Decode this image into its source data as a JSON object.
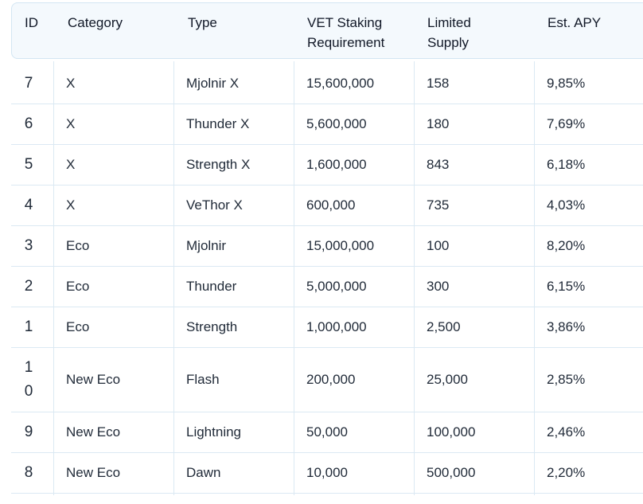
{
  "table": {
    "headers": {
      "id": "ID",
      "category": "Category",
      "type": "Type",
      "vet_line1": "VET Staking",
      "vet_line2": "Requirement",
      "supply_line1": "Limited",
      "supply_line2": "Supply",
      "apy": "Est. APY"
    },
    "rows": [
      {
        "id": "7",
        "category": "X",
        "type": "Mjolnir X",
        "vet": "15,600,000",
        "supply": "158",
        "apy": "9,85%"
      },
      {
        "id": "6",
        "category": "X",
        "type": "Thunder X",
        "vet": "5,600,000",
        "supply": "180",
        "apy": "7,69%"
      },
      {
        "id": "5",
        "category": "X",
        "type": "Strength X",
        "vet": "1,600,000",
        "supply": "843",
        "apy": "6,18%"
      },
      {
        "id": "4",
        "category": "X",
        "type": "VeThor X",
        "vet": "600,000",
        "supply": "735",
        "apy": "4,03%"
      },
      {
        "id": "3",
        "category": "Eco",
        "type": "Mjolnir",
        "vet": "15,000,000",
        "supply": "100",
        "apy": "8,20%"
      },
      {
        "id": "2",
        "category": "Eco",
        "type": "Thunder",
        "vet": "5,000,000",
        "supply": "300",
        "apy": "6,15%"
      },
      {
        "id": "1",
        "category": "Eco",
        "type": "Strength",
        "vet": "1,000,000",
        "supply": "2,500",
        "apy": "3,86%"
      },
      {
        "id": "10",
        "category": "New Eco",
        "type": "Flash",
        "vet": "200,000",
        "supply": "25,000",
        "apy": "2,85%"
      },
      {
        "id": "9",
        "category": "New Eco",
        "type": "Lightning",
        "vet": "50,000",
        "supply": "100,000",
        "apy": "2,46%"
      },
      {
        "id": "8",
        "category": "New Eco",
        "type": "Dawn",
        "vet": "10,000",
        "supply": "500,000",
        "apy": "2,20%"
      }
    ]
  }
}
